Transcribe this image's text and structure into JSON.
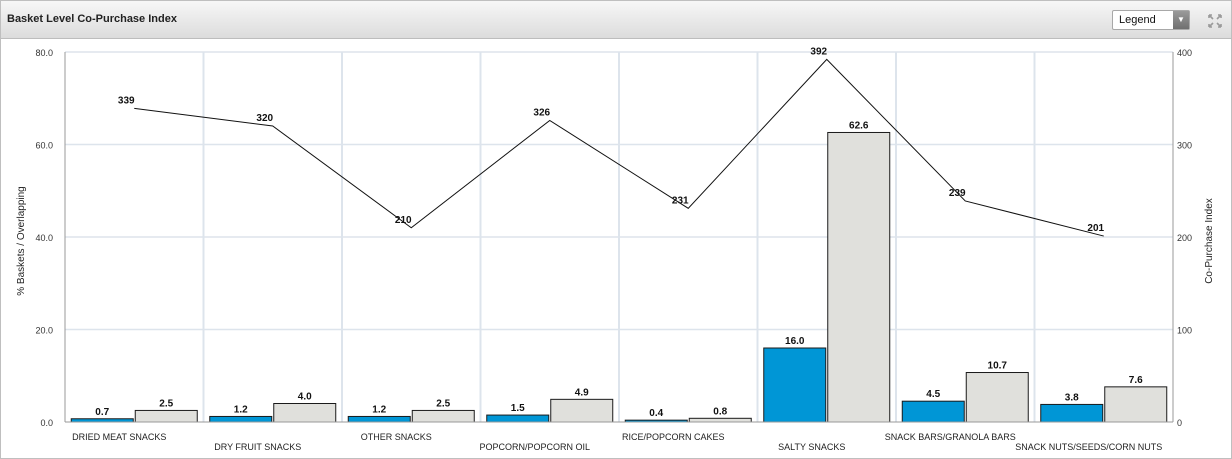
{
  "header": {
    "title": "Basket Level Co-Purchase Index",
    "legend_label": "Legend"
  },
  "icons": {
    "legend_arrow": "chevron-down-icon",
    "expand": "expand-icon"
  },
  "colors": {
    "series_blue": "#0096d6",
    "series_grey": "#e0e0dc",
    "line": "#111111",
    "grid": "#dde4ec"
  },
  "chart_data": {
    "type": "bar",
    "categories": [
      "DRIED MEAT SNACKS",
      "DRY FRUIT SNACKS",
      "OTHER SNACKS",
      "POPCORN/POPCORN OIL",
      "RICE/POPCORN CAKES",
      "SALTY SNACKS",
      "SNACK BARS/GRANOLA BARS",
      "SNACK NUTS/SEEDS/CORN NUTS"
    ],
    "series": [
      {
        "values": [
          0.7,
          1.2,
          1.2,
          1.5,
          0.4,
          16.0,
          4.5,
          3.8
        ]
      },
      {
        "values": [
          2.5,
          4.0,
          2.5,
          4.9,
          0.8,
          62.6,
          10.7,
          7.6
        ]
      }
    ],
    "line_series": {
      "axis": "right",
      "values": [
        339,
        320,
        210,
        326,
        231,
        392,
        239,
        201
      ]
    },
    "value_labels": {
      "bar1": [
        "0.7",
        "1.2",
        "1.2",
        "1.5",
        "0.4",
        "16.0",
        "4.5",
        "3.8"
      ],
      "bar2": [
        "2.5",
        "4.0",
        "2.5",
        "4.9",
        "0.8",
        "62.6",
        "10.7",
        "7.6"
      ],
      "line": [
        "339",
        "320",
        "210",
        "326",
        "231",
        "392",
        "239",
        "201"
      ]
    },
    "ylabel": "% Baskets / Overlapping",
    "y2label": "Co-Purchase Index",
    "ylim": [
      0,
      80
    ],
    "y2lim": [
      0,
      400
    ],
    "yticks": [
      "0.0",
      "20.0",
      "40.0",
      "60.0",
      "80.0"
    ],
    "y2ticks": [
      "0",
      "100",
      "200",
      "300",
      "400"
    ],
    "grid": true
  }
}
